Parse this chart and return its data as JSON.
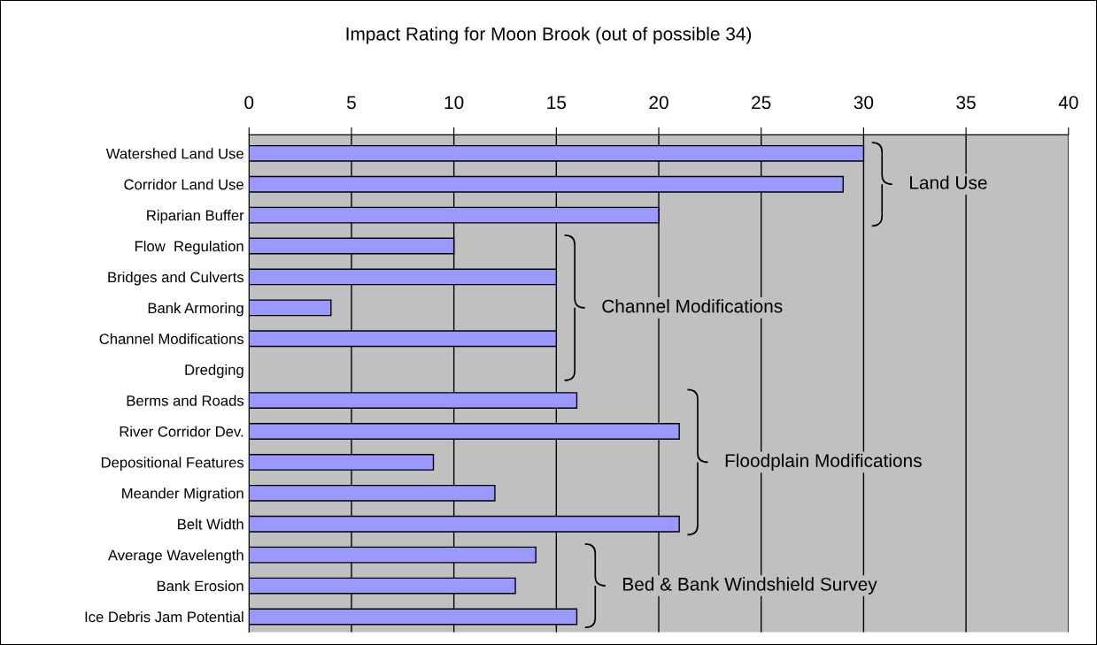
{
  "chart_data": {
    "type": "bar",
    "orientation": "horizontal",
    "title": "Impact Rating for Moon Brook (out of possible 34)",
    "categories": [
      "Watershed Land Use",
      "Corridor Land Use",
      "Riparian Buffer",
      "Flow  Regulation",
      "Bridges and Culverts",
      "Bank Armoring",
      "Channel Modifications",
      "Dredging",
      "Berms and Roads",
      "River Corridor Dev.",
      "Depositional Features",
      "Meander Migration",
      "Belt Width",
      "Average Wavelength",
      "Bank Erosion",
      "Ice Debris Jam Potential"
    ],
    "values": [
      30,
      29,
      20,
      10,
      15,
      4,
      15,
      null,
      16,
      21,
      9,
      12,
      21,
      14,
      13,
      16
    ],
    "color": "#9999ff",
    "xlim": [
      0,
      40
    ],
    "xticks": [
      0,
      5,
      10,
      15,
      20,
      25,
      30,
      35,
      40
    ],
    "grid": "x",
    "annotations": [
      "Land Use",
      "Channel Modifications",
      "Floodplain Modifications",
      "Bed & Bank Windshield Survey"
    ]
  }
}
